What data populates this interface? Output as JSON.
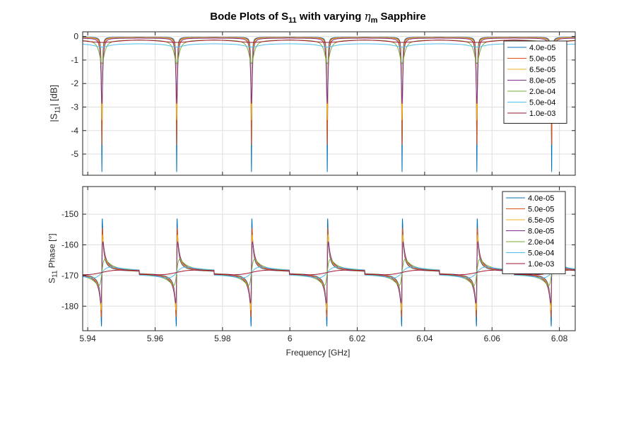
{
  "figure": {
    "title_pre": "Bode Plots of S",
    "title_sub": "11",
    "title_mid": " with varying ",
    "title_eta": "η",
    "title_eta_sub": "m",
    "title_post": " Sapphire"
  },
  "chart_data": [
    {
      "type": "line",
      "panel": "magnitude",
      "title": "Bode Plots of S11 with varying ηm Sapphire",
      "xlabel": "",
      "ylabel_pre": "|S",
      "ylabel_sub": "11",
      "ylabel_post": "| [dB]",
      "xlim": [
        5.9385,
        6.0847
      ],
      "ylim": [
        -5.9,
        0.2
      ],
      "yticks": [
        0,
        -1,
        -2,
        -3,
        -4,
        -5
      ],
      "ytick_labels": [
        "0",
        "-1",
        "-2",
        "-3",
        "-4",
        "-5"
      ],
      "xticks": [
        5.94,
        5.96,
        5.98,
        6.0,
        6.02,
        6.04,
        6.06,
        6.08
      ],
      "grid": true,
      "legend_placement": "top-right",
      "resonances_ghz": [
        5.9442,
        5.9664,
        5.9886,
        6.0111,
        6.0333,
        6.0555,
        6.0777
      ],
      "series": [
        {
          "name": "4.0e-05",
          "color": "#0072BD",
          "min_db": -5.75,
          "baseline_db": -0.03
        },
        {
          "name": "5.0e-05",
          "color": "#D95319",
          "min_db": -4.6,
          "baseline_db": -0.04
        },
        {
          "name": "6.5e-05",
          "color": "#EDB120",
          "min_db": -3.55,
          "baseline_db": -0.05
        },
        {
          "name": "8.0e-05",
          "color": "#7E2F8E",
          "min_db": -2.85,
          "baseline_db": -0.07
        },
        {
          "name": "2.0e-04",
          "color": "#77AC30",
          "min_db": -1.15,
          "baseline_db": -0.15
        },
        {
          "name": "5.0e-04",
          "color": "#4DBEEE",
          "min_db": -0.45,
          "baseline_db": -0.3
        },
        {
          "name": "1.0e-03",
          "color": "#A2142F",
          "min_db": -0.25,
          "baseline_db": -0.12
        }
      ]
    },
    {
      "type": "line",
      "panel": "phase",
      "xlabel": "Frequency [GHz]",
      "ylabel_pre": "S",
      "ylabel_sub": "11",
      "ylabel_post": " Phase [°]",
      "xlim": [
        5.9385,
        6.0847
      ],
      "ylim": [
        -188,
        -141
      ],
      "yticks": [
        -150,
        -160,
        -170,
        -180
      ],
      "ytick_labels": [
        "-150",
        "-160",
        "-170",
        "-180"
      ],
      "xticks": [
        5.94,
        5.96,
        5.98,
        6.0,
        6.02,
        6.04,
        6.06,
        6.08
      ],
      "xtick_labels": [
        "5.94",
        "5.96",
        "5.98",
        "6",
        "6.02",
        "6.04",
        "6.06",
        "6.08"
      ],
      "grid": true,
      "legend_placement": "top-right",
      "series": [
        {
          "name": "4.0e-05",
          "color": "#0072BD",
          "max_deg": -150,
          "min_deg": -185
        },
        {
          "name": "5.0e-05",
          "color": "#D95319",
          "max_deg": -153.5,
          "min_deg": -182.5
        },
        {
          "name": "6.5e-05",
          "color": "#EDB120",
          "max_deg": -156,
          "min_deg": -180.5
        },
        {
          "name": "8.0e-05",
          "color": "#7E2F8E",
          "max_deg": -159,
          "min_deg": -179
        },
        {
          "name": "2.0e-04",
          "color": "#77AC30",
          "max_deg": -165,
          "min_deg": -173.5
        },
        {
          "name": "5.0e-04",
          "color": "#4DBEEE",
          "max_deg": -167.5,
          "min_deg": -171
        },
        {
          "name": "1.0e-03",
          "color": "#A2142F",
          "max_deg": -168.3,
          "min_deg": -169.8
        }
      ]
    }
  ]
}
